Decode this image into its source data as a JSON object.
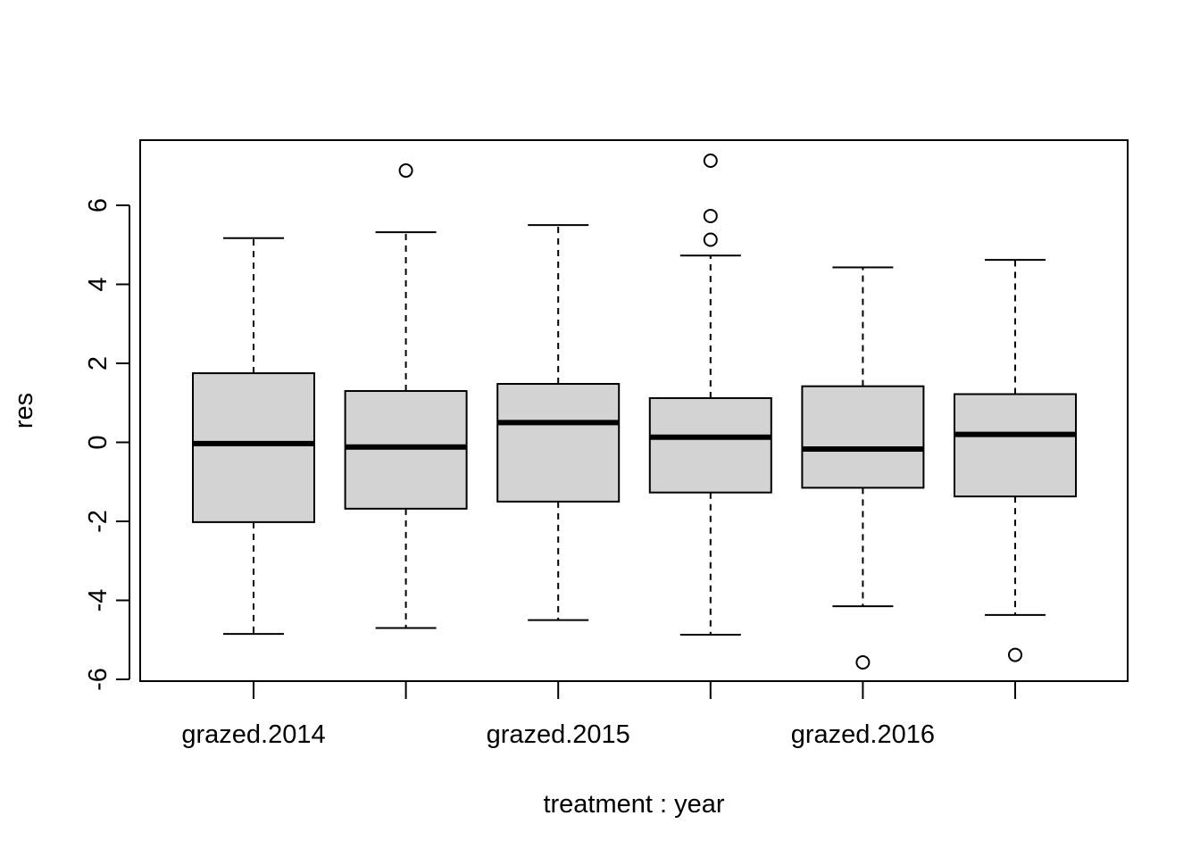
{
  "chart_data": {
    "type": "boxplot",
    "title": "",
    "xlabel": "treatment : year",
    "ylabel": "res",
    "ylim": [
      -6.05,
      7.6
    ],
    "y_ticks": [
      -6,
      -4,
      -2,
      0,
      2,
      4,
      6
    ],
    "y_tick_labels": [
      "-6",
      "-4",
      "-2",
      "0",
      "2",
      "4",
      "6"
    ],
    "categories": [
      "grazed.2014",
      "",
      "grazed.2015",
      "",
      "grazed.2016",
      ""
    ],
    "grid": false,
    "box_fill": "#d3d3d3",
    "boxes": [
      {
        "whisker_low": -4.85,
        "q1": -2.02,
        "median": -0.03,
        "q3": 1.75,
        "whisker_high": 5.17,
        "outliers": []
      },
      {
        "whisker_low": -4.7,
        "q1": -1.68,
        "median": -0.12,
        "q3": 1.3,
        "whisker_high": 5.32,
        "outliers": [
          6.88
        ]
      },
      {
        "whisker_low": -4.5,
        "q1": -1.5,
        "median": 0.5,
        "q3": 1.48,
        "whisker_high": 5.5,
        "outliers": []
      },
      {
        "whisker_low": -4.87,
        "q1": -1.27,
        "median": 0.13,
        "q3": 1.12,
        "whisker_high": 4.73,
        "outliers": [
          5.13,
          5.73,
          7.13
        ]
      },
      {
        "whisker_low": -4.15,
        "q1": -1.15,
        "median": -0.17,
        "q3": 1.42,
        "whisker_high": 4.43,
        "outliers": [
          -5.57
        ]
      },
      {
        "whisker_low": -4.37,
        "q1": -1.37,
        "median": 0.2,
        "q3": 1.22,
        "whisker_high": 4.62,
        "outliers": [
          -5.38
        ]
      }
    ]
  }
}
